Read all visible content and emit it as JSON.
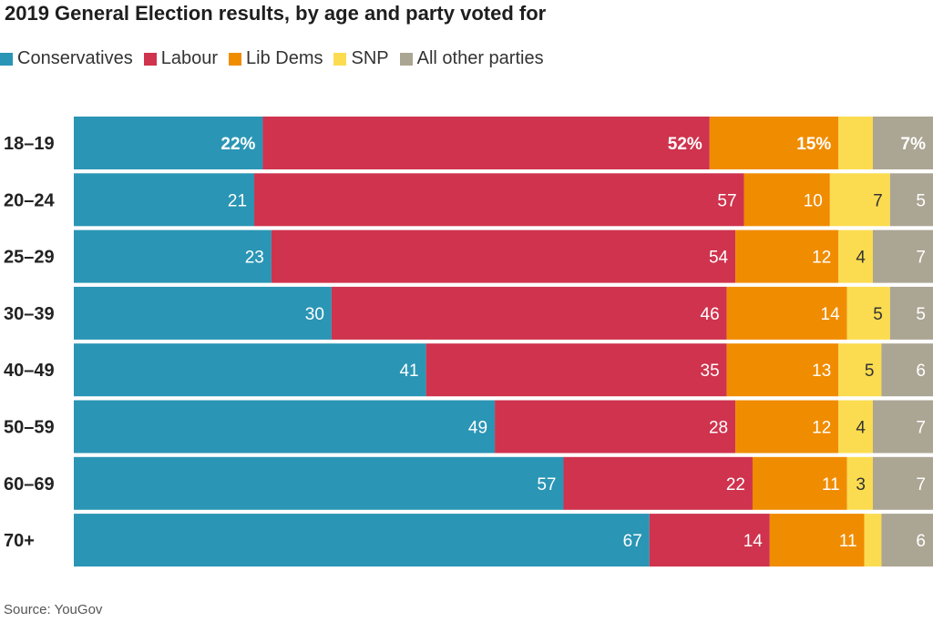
{
  "chart_data": {
    "type": "bar",
    "orientation": "horizontal-stacked-100",
    "title": "2019 General Election results, by age and party voted for",
    "categories": [
      "18–19",
      "20–24",
      "25–29",
      "30–39",
      "40–49",
      "50–59",
      "60–69",
      "70+"
    ],
    "series": [
      {
        "name": "Conservatives",
        "color": "#2a95b5",
        "values": [
          22,
          21,
          23,
          30,
          41,
          49,
          57,
          67
        ],
        "labels": [
          "22%",
          "21",
          "23",
          "30",
          "41",
          "49",
          "57",
          "67"
        ]
      },
      {
        "name": "Labour",
        "color": "#cf334d",
        "values": [
          52,
          57,
          54,
          46,
          35,
          28,
          22,
          14
        ],
        "labels": [
          "52%",
          "57",
          "54",
          "46",
          "35",
          "28",
          "22",
          "14"
        ]
      },
      {
        "name": "Lib Dems",
        "color": "#f08c00",
        "values": [
          15,
          10,
          12,
          14,
          13,
          12,
          11,
          11
        ],
        "labels": [
          "15%",
          "10",
          "12",
          "14",
          "13",
          "12",
          "11",
          "11"
        ]
      },
      {
        "name": "SNP",
        "color": "#fbdc50",
        "values": [
          4,
          7,
          4,
          5,
          5,
          4,
          3,
          2
        ],
        "labels": [
          "",
          "7",
          "4",
          "5",
          "5",
          "4",
          "3",
          ""
        ]
      },
      {
        "name": "All other parties",
        "color": "#aba593",
        "values": [
          7,
          5,
          7,
          5,
          6,
          7,
          7,
          6
        ],
        "labels": [
          "7%",
          "5",
          "7",
          "5",
          "6",
          "7",
          "7",
          "6"
        ]
      }
    ],
    "label_text_colors": [
      "#ffffff",
      "#ffffff",
      "#ffffff",
      "#333333",
      "#ffffff"
    ],
    "bold_first_row": true,
    "legend_position": "top-left",
    "grid": false
  },
  "source": "Source: YouGov"
}
